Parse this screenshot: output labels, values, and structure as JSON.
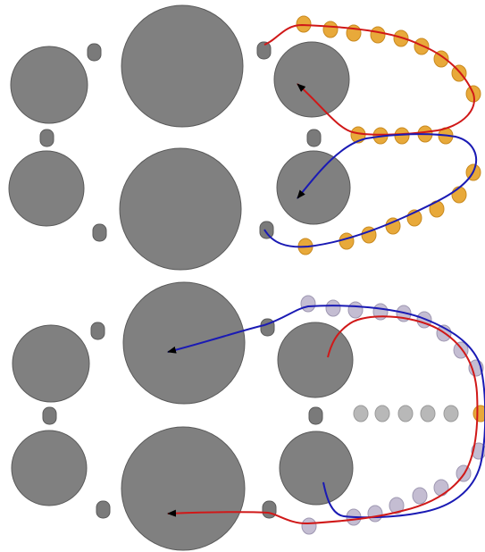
{
  "colors": {
    "background": "#ffffff",
    "circle_fill": "#808080",
    "circle_stroke": "#5a5a5a",
    "small_node_fill": "#7a7a7a",
    "orange_node": "#e8a93a",
    "orange_stroke": "#c98a20",
    "lavender_node": "#c4bdd2",
    "lavender_stroke": "#9f98b2",
    "light_gray_node": "#b8b8b8",
    "red_path": "#d01818",
    "blue_path": "#1a1ab4",
    "arrowhead": "#000000"
  },
  "panels": [
    {
      "id": "top",
      "description_free": true,
      "paths": [
        "red",
        "blue"
      ],
      "node_style": "orange"
    },
    {
      "id": "bottom",
      "description_free": true,
      "paths": [
        "blue",
        "red"
      ],
      "node_style": "lavender"
    }
  ]
}
